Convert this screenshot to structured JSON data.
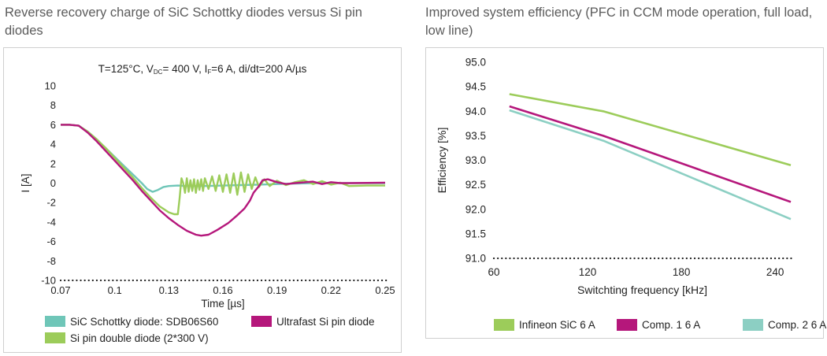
{
  "headings": {
    "left": "Reverse recovery charge of SiC Schottky diodes versus Si pin diodes",
    "right": "Improved system efficiency (PFC in CCM mode operation, full load, low line)"
  },
  "colors": {
    "sic": "#6fc6b8",
    "ultrafast": "#b5177b",
    "sipin": "#9ccc5a",
    "infineon": "#9ccc5a",
    "comp1": "#b5177b",
    "comp2": "#8ccfc3"
  },
  "chart_data": [
    {
      "type": "line",
      "title_parts": {
        "t": "T=125°C, V",
        "dc": "DC",
        "v": "= 400 V, I",
        "f": "F",
        "i": "=6 A, di/dt=200 A/µs"
      },
      "xlabel": "Time [µs]",
      "ylabel": "I [A]",
      "xlim": [
        0.07,
        0.25
      ],
      "ylim": [
        -10,
        10
      ],
      "xticks": [
        "0.07",
        "0.1",
        "0.13",
        "0.16",
        "0.19",
        "0.22",
        "0.25"
      ],
      "yticks": [
        "10",
        "8",
        "6",
        "4",
        "2",
        "0",
        "-2",
        "-4",
        "-6",
        "-8",
        "-10"
      ],
      "legend": [
        "SiC Schottky diode: SDB06S60",
        "Ultrafast Si pin diode",
        "Si pin double diode (2*300 V)"
      ],
      "series": [
        {
          "name": "SiC Schottky diode: SDB06S60",
          "color": "#6fc6b8",
          "points": [
            [
              0.07,
              6.0
            ],
            [
              0.075,
              6.0
            ],
            [
              0.08,
              5.9
            ],
            [
              0.085,
              5.3
            ],
            [
              0.09,
              4.5
            ],
            [
              0.095,
              3.6
            ],
            [
              0.1,
              2.7
            ],
            [
              0.105,
              1.8
            ],
            [
              0.11,
              0.9
            ],
            [
              0.115,
              0.0
            ],
            [
              0.118,
              -0.6
            ],
            [
              0.121,
              -0.9
            ],
            [
              0.124,
              -0.7
            ],
            [
              0.127,
              -0.4
            ],
            [
              0.13,
              -0.3
            ],
            [
              0.135,
              -0.25
            ],
            [
              0.14,
              -0.3
            ],
            [
              0.15,
              -0.3
            ],
            [
              0.16,
              -0.25
            ],
            [
              0.17,
              -0.2
            ],
            [
              0.18,
              -0.15
            ],
            [
              0.19,
              -0.1
            ],
            [
              0.2,
              -0.05
            ],
            [
              0.21,
              0.0
            ],
            [
              0.25,
              0.0
            ]
          ]
        },
        {
          "name": "Ultrafast Si pin diode",
          "color": "#b5177b",
          "points": [
            [
              0.07,
              6.0
            ],
            [
              0.075,
              6.0
            ],
            [
              0.08,
              5.9
            ],
            [
              0.085,
              5.2
            ],
            [
              0.09,
              4.3
            ],
            [
              0.095,
              3.3
            ],
            [
              0.1,
              2.3
            ],
            [
              0.105,
              1.3
            ],
            [
              0.11,
              0.3
            ],
            [
              0.115,
              -0.8
            ],
            [
              0.12,
              -1.8
            ],
            [
              0.125,
              -2.8
            ],
            [
              0.13,
              -3.6
            ],
            [
              0.135,
              -4.3
            ],
            [
              0.14,
              -4.9
            ],
            [
              0.145,
              -5.3
            ],
            [
              0.148,
              -5.4
            ],
            [
              0.152,
              -5.3
            ],
            [
              0.157,
              -4.8
            ],
            [
              0.163,
              -4.1
            ],
            [
              0.168,
              -3.3
            ],
            [
              0.172,
              -2.6
            ],
            [
              0.175,
              -1.8
            ],
            [
              0.177,
              -1.0
            ],
            [
              0.18,
              -0.3
            ],
            [
              0.182,
              0.3
            ],
            [
              0.185,
              0.4
            ],
            [
              0.19,
              0.1
            ],
            [
              0.195,
              -0.1
            ],
            [
              0.2,
              0.0
            ],
            [
              0.21,
              0.15
            ],
            [
              0.215,
              -0.1
            ],
            [
              0.22,
              0.1
            ],
            [
              0.225,
              0.0
            ],
            [
              0.23,
              0.0
            ],
            [
              0.25,
              0.05
            ]
          ]
        },
        {
          "name": "Si pin double diode (2*300 V)",
          "color": "#9ccc5a",
          "points": [
            [
              0.07,
              6.0
            ],
            [
              0.075,
              6.0
            ],
            [
              0.08,
              5.9
            ],
            [
              0.085,
              5.3
            ],
            [
              0.09,
              4.5
            ],
            [
              0.095,
              3.6
            ],
            [
              0.1,
              2.6
            ],
            [
              0.105,
              1.6
            ],
            [
              0.11,
              0.6
            ],
            [
              0.115,
              -0.5
            ],
            [
              0.12,
              -1.5
            ],
            [
              0.125,
              -2.4
            ],
            [
              0.13,
              -3.0
            ],
            [
              0.133,
              -3.2
            ],
            [
              0.135,
              -3.2
            ],
            [
              0.136,
              -1.5
            ],
            [
              0.137,
              0.5
            ],
            [
              0.138,
              0.0
            ],
            [
              0.139,
              -1.0
            ],
            [
              0.14,
              0.5
            ],
            [
              0.141,
              -0.9
            ],
            [
              0.142,
              0.3
            ],
            [
              0.143,
              -0.8
            ],
            [
              0.144,
              0.4
            ],
            [
              0.145,
              -1.0
            ],
            [
              0.146,
              0.3
            ],
            [
              0.147,
              -0.7
            ],
            [
              0.148,
              0.4
            ],
            [
              0.149,
              -0.8
            ],
            [
              0.15,
              0.5
            ],
            [
              0.152,
              -0.6
            ],
            [
              0.154,
              0.7
            ],
            [
              0.156,
              -0.8
            ],
            [
              0.158,
              0.8
            ],
            [
              0.16,
              -0.9
            ],
            [
              0.162,
              0.9
            ],
            [
              0.164,
              -1.0
            ],
            [
              0.166,
              1.0
            ],
            [
              0.168,
              -1.2
            ],
            [
              0.17,
              1.1
            ],
            [
              0.172,
              -0.9
            ],
            [
              0.174,
              0.9
            ],
            [
              0.176,
              -0.6
            ],
            [
              0.178,
              0.6
            ],
            [
              0.18,
              -0.4
            ],
            [
              0.183,
              0.4
            ],
            [
              0.186,
              -0.3
            ],
            [
              0.19,
              0.25
            ],
            [
              0.195,
              -0.2
            ],
            [
              0.2,
              0.1
            ],
            [
              0.205,
              0.3
            ],
            [
              0.21,
              -0.1
            ],
            [
              0.215,
              0.2
            ],
            [
              0.22,
              -0.15
            ],
            [
              0.225,
              0.05
            ],
            [
              0.23,
              -0.3
            ],
            [
              0.24,
              -0.25
            ],
            [
              0.25,
              -0.25
            ]
          ]
        }
      ]
    },
    {
      "type": "line",
      "xlabel": "Switchting frequency [kHz]",
      "ylabel": "Efficiency [%]",
      "xlim": [
        60,
        250
      ],
      "ylim": [
        91.0,
        95.0
      ],
      "xticks": [
        60,
        120,
        180,
        240
      ],
      "yticks": [
        "95.0",
        "94.5",
        "94.0",
        "93.5",
        "93.0",
        "92.5",
        "92.0",
        "91.5",
        "91.0"
      ],
      "legend": [
        "Infineon SiC 6 A",
        "Comp. 1 6 A",
        "Comp. 2 6 A"
      ],
      "series": [
        {
          "name": "Infineon SiC 6 A",
          "color": "#9ccc5a",
          "x": [
            70,
            130,
            250
          ],
          "values": [
            94.35,
            94.0,
            92.9
          ]
        },
        {
          "name": "Comp. 1 6 A",
          "color": "#b5177b",
          "x": [
            70,
            130,
            250
          ],
          "values": [
            94.1,
            93.5,
            92.15
          ]
        },
        {
          "name": "Comp. 2 6 A",
          "color": "#8ccfc3",
          "x": [
            70,
            130,
            250
          ],
          "values": [
            94.02,
            93.4,
            91.8
          ]
        }
      ]
    }
  ]
}
